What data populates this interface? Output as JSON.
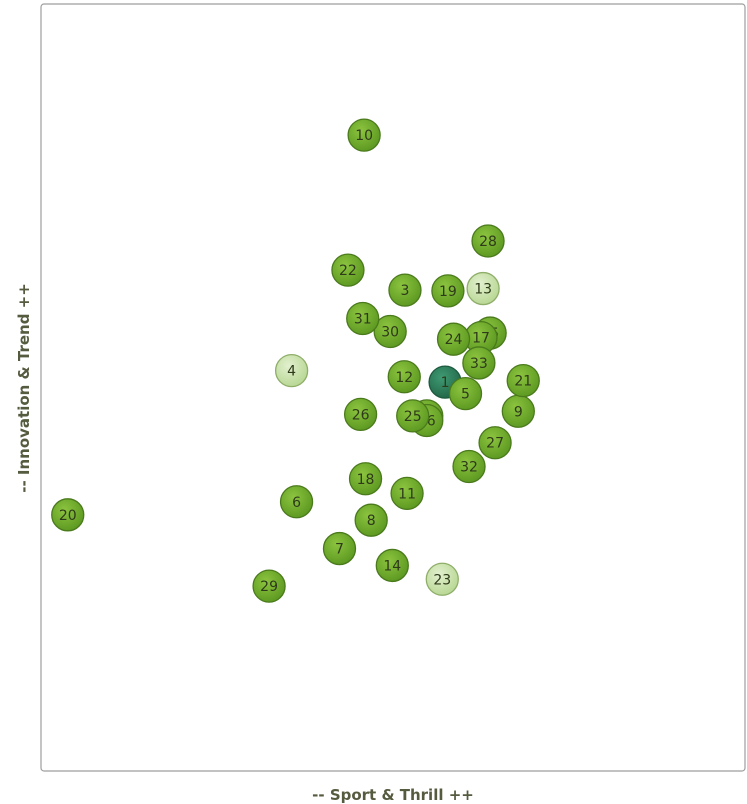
{
  "chart_data": {
    "type": "scatter",
    "xlabel": "-- Sport & Thrill ++",
    "ylabel": "-- Innovation & Trend ++",
    "xlim": [
      0,
      100
    ],
    "ylim": [
      0,
      100
    ],
    "grid": false,
    "legend": "none",
    "colors": {
      "normal": "#6aaa2a",
      "light": "#c5e1a5",
      "selected": "#2e7d5b",
      "stroke": "#4a7a1c",
      "frame": "#9e9e9e"
    },
    "points": [
      {
        "label": "1",
        "x": 57.4,
        "y": 50.7,
        "style": "selected"
      },
      {
        "label": "2",
        "x": 54.8,
        "y": 46.3,
        "style": "normal"
      },
      {
        "label": "3",
        "x": 51.7,
        "y": 62.7,
        "style": "normal"
      },
      {
        "label": "4",
        "x": 35.6,
        "y": 52.2,
        "style": "light"
      },
      {
        "label": "5",
        "x": 60.3,
        "y": 49.2,
        "style": "normal"
      },
      {
        "label": "6",
        "x": 36.3,
        "y": 35.1,
        "style": "normal"
      },
      {
        "label": "7",
        "x": 42.4,
        "y": 29.0,
        "style": "normal"
      },
      {
        "label": "8",
        "x": 46.9,
        "y": 32.7,
        "style": "normal"
      },
      {
        "label": "9",
        "x": 67.8,
        "y": 46.9,
        "style": "normal"
      },
      {
        "label": "10",
        "x": 45.9,
        "y": 82.9,
        "style": "normal"
      },
      {
        "label": "11",
        "x": 52.0,
        "y": 36.2,
        "style": "normal"
      },
      {
        "label": "12",
        "x": 51.6,
        "y": 51.4,
        "style": "normal"
      },
      {
        "label": "13",
        "x": 62.8,
        "y": 62.9,
        "style": "light"
      },
      {
        "label": "14",
        "x": 49.9,
        "y": 26.8,
        "style": "normal"
      },
      {
        "label": "15",
        "x": 63.8,
        "y": 57.1,
        "style": "normal"
      },
      {
        "label": "16",
        "x": 54.8,
        "y": 45.7,
        "style": "normal"
      },
      {
        "label": "17",
        "x": 62.5,
        "y": 56.5,
        "style": "normal"
      },
      {
        "label": "18",
        "x": 46.1,
        "y": 38.1,
        "style": "normal"
      },
      {
        "label": "19",
        "x": 57.8,
        "y": 62.6,
        "style": "normal"
      },
      {
        "label": "20",
        "x": 3.8,
        "y": 33.4,
        "style": "normal"
      },
      {
        "label": "21",
        "x": 68.5,
        "y": 50.9,
        "style": "normal"
      },
      {
        "label": "22",
        "x": 43.6,
        "y": 65.3,
        "style": "normal"
      },
      {
        "label": "23",
        "x": 57.0,
        "y": 25.0,
        "style": "light"
      },
      {
        "label": "24",
        "x": 58.6,
        "y": 56.3,
        "style": "normal"
      },
      {
        "label": "25",
        "x": 52.8,
        "y": 46.3,
        "style": "normal"
      },
      {
        "label": "26",
        "x": 45.4,
        "y": 46.5,
        "style": "normal"
      },
      {
        "label": "27",
        "x": 64.5,
        "y": 42.8,
        "style": "normal"
      },
      {
        "label": "28",
        "x": 63.5,
        "y": 69.1,
        "style": "normal"
      },
      {
        "label": "29",
        "x": 32.4,
        "y": 24.1,
        "style": "normal"
      },
      {
        "label": "30",
        "x": 49.6,
        "y": 57.3,
        "style": "normal"
      },
      {
        "label": "31",
        "x": 45.7,
        "y": 59.0,
        "style": "normal"
      },
      {
        "label": "32",
        "x": 60.8,
        "y": 39.7,
        "style": "normal"
      },
      {
        "label": "33",
        "x": 62.2,
        "y": 53.2,
        "style": "normal"
      }
    ]
  }
}
